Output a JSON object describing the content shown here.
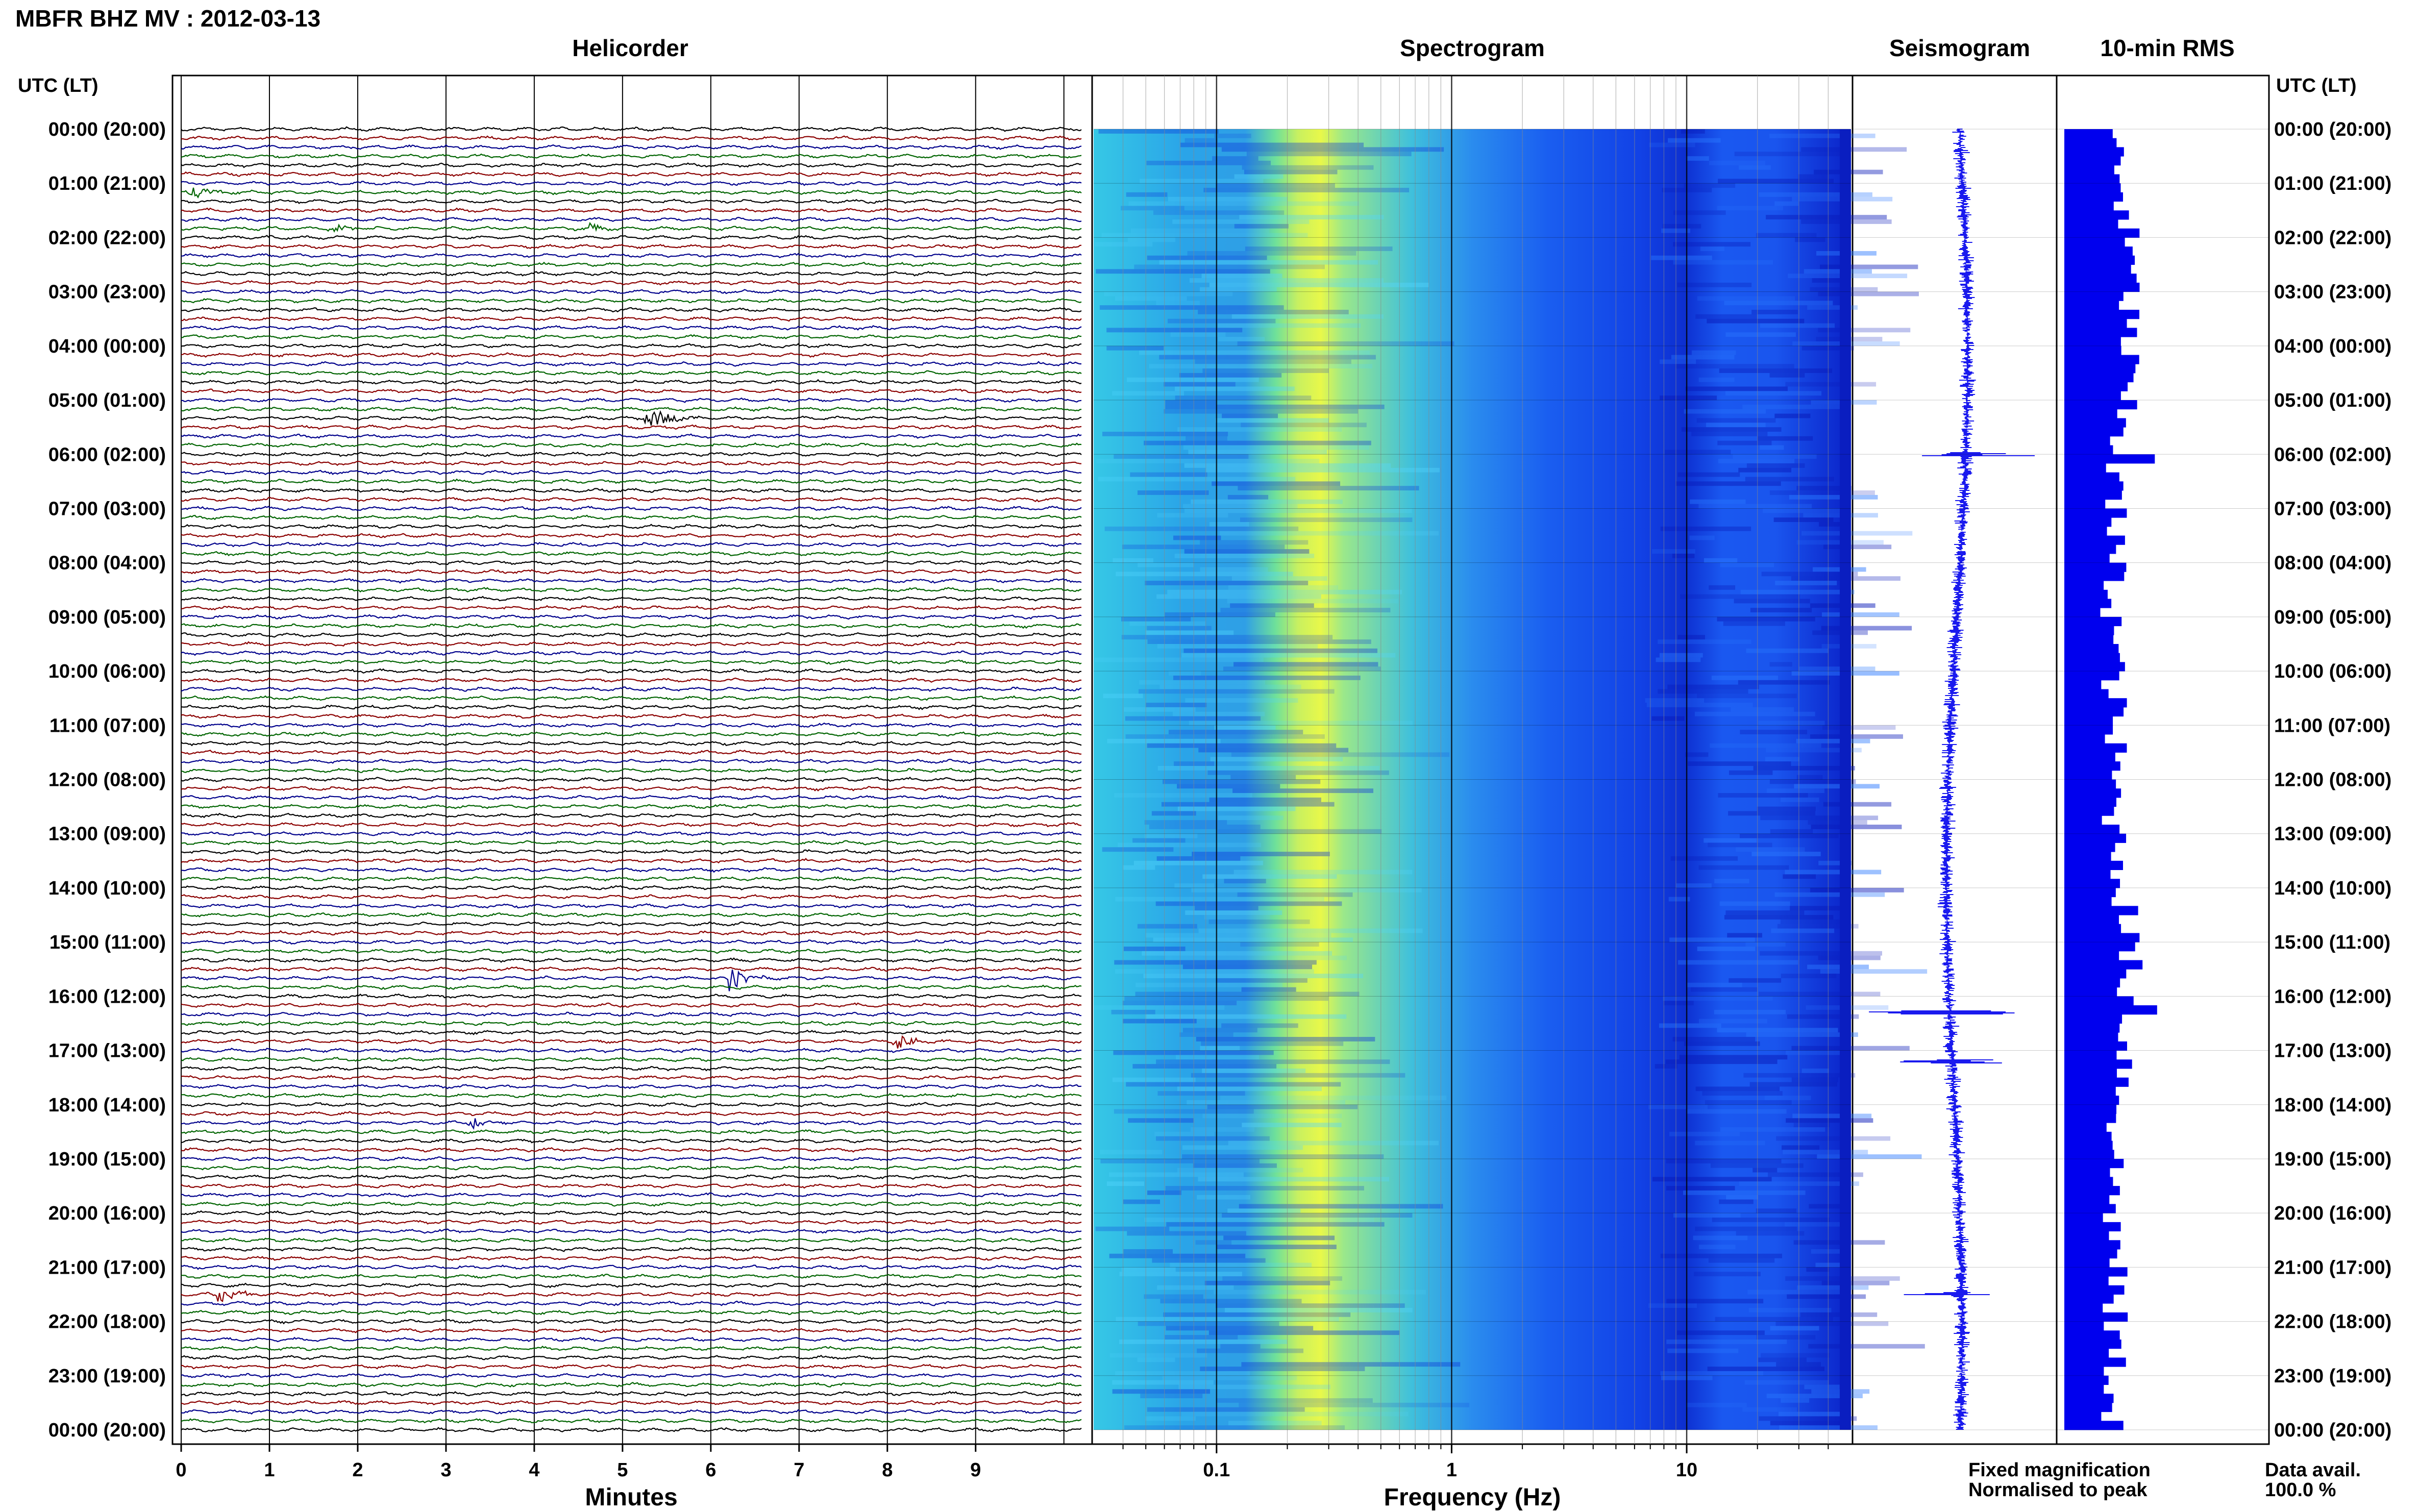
{
  "header": {
    "station_title": "MBFR BHZ MV : 2012-03-13",
    "utc_label_left": "UTC (LT)",
    "utc_label_right": "UTC (LT)"
  },
  "panels": {
    "helicorder": "Helicorder",
    "spectrogram": "Spectrogram",
    "seismogram": "Seismogram",
    "rms": "10-min RMS"
  },
  "axes": {
    "minutes_label": "Minutes",
    "frequency_label": "Frequency (Hz)",
    "minute_ticks": [
      "0",
      "1",
      "2",
      "3",
      "4",
      "5",
      "6",
      "7",
      "8",
      "9"
    ],
    "frequency_ticks": [
      "0.1",
      "1",
      "10"
    ]
  },
  "legend": {
    "fixed_magnification": "Fixed magnification",
    "normalised_to_peak": "Normalised to peak",
    "fixed_color": "#0000ee",
    "normalised_color": "#ee0000"
  },
  "footer": {
    "data_avail_label": "Data avail.",
    "data_avail_value": "100.0 %"
  },
  "colors": {
    "trace_cycle": [
      "#000000",
      "#8b0000",
      "#00008b",
      "#006400"
    ],
    "rms_bar": "#0000ee",
    "seismogram": "#1a1aee"
  },
  "chart_data": [
    {
      "type": "line",
      "title": "Helicorder",
      "xlabel": "Minutes",
      "x_range_minutes": [
        0,
        10
      ],
      "rows_per_hour": 6,
      "hour_labels": [
        "00:00 (20:00)",
        "01:00 (21:00)",
        "02:00 (22:00)",
        "03:00 (23:00)",
        "04:00 (00:00)",
        "05:00 (01:00)",
        "06:00 (02:00)",
        "07:00 (03:00)",
        "08:00 (04:00)",
        "09:00 (05:00)",
        "10:00 (06:00)",
        "11:00 (07:00)",
        "12:00 (08:00)",
        "13:00 (09:00)",
        "14:00 (10:00)",
        "15:00 (11:00)",
        "16:00 (12:00)",
        "17:00 (13:00)",
        "18:00 (14:00)",
        "19:00 (15:00)",
        "20:00 (16:00)",
        "21:00 (17:00)",
        "22:00 (18:00)",
        "23:00 (19:00)",
        "00:00 (20:00)"
      ],
      "events": [
        {
          "row": 32,
          "minute": 5.3,
          "amplitude": 3.0
        },
        {
          "row": 94,
          "minute": 6.2,
          "amplitude": 3.0
        },
        {
          "row": 101,
          "minute": 8.1,
          "amplitude": 1.8
        },
        {
          "row": 129,
          "minute": 0.4,
          "amplitude": 2.0
        },
        {
          "row": 7,
          "minute": 0.1,
          "amplitude": 1.6
        },
        {
          "row": 11,
          "minute": 4.6,
          "amplitude": 1.4
        },
        {
          "row": 11,
          "minute": 1.7,
          "amplitude": 1.2
        },
        {
          "row": 110,
          "minute": 3.3,
          "amplitude": 1.3
        }
      ]
    },
    {
      "type": "heatmap",
      "title": "Spectrogram",
      "xlabel": "Frequency (Hz)",
      "x_scale": "log",
      "x_range_hz": [
        0.03,
        50
      ],
      "peak_band_hz": 0.2
    },
    {
      "type": "line",
      "title": "Seismogram",
      "peak_hours": [
        6.0,
        16.3,
        17.2,
        21.5
      ]
    },
    {
      "type": "bar",
      "title": "10-min RMS",
      "peak_hours": [
        6.0,
        16.2
      ]
    }
  ]
}
